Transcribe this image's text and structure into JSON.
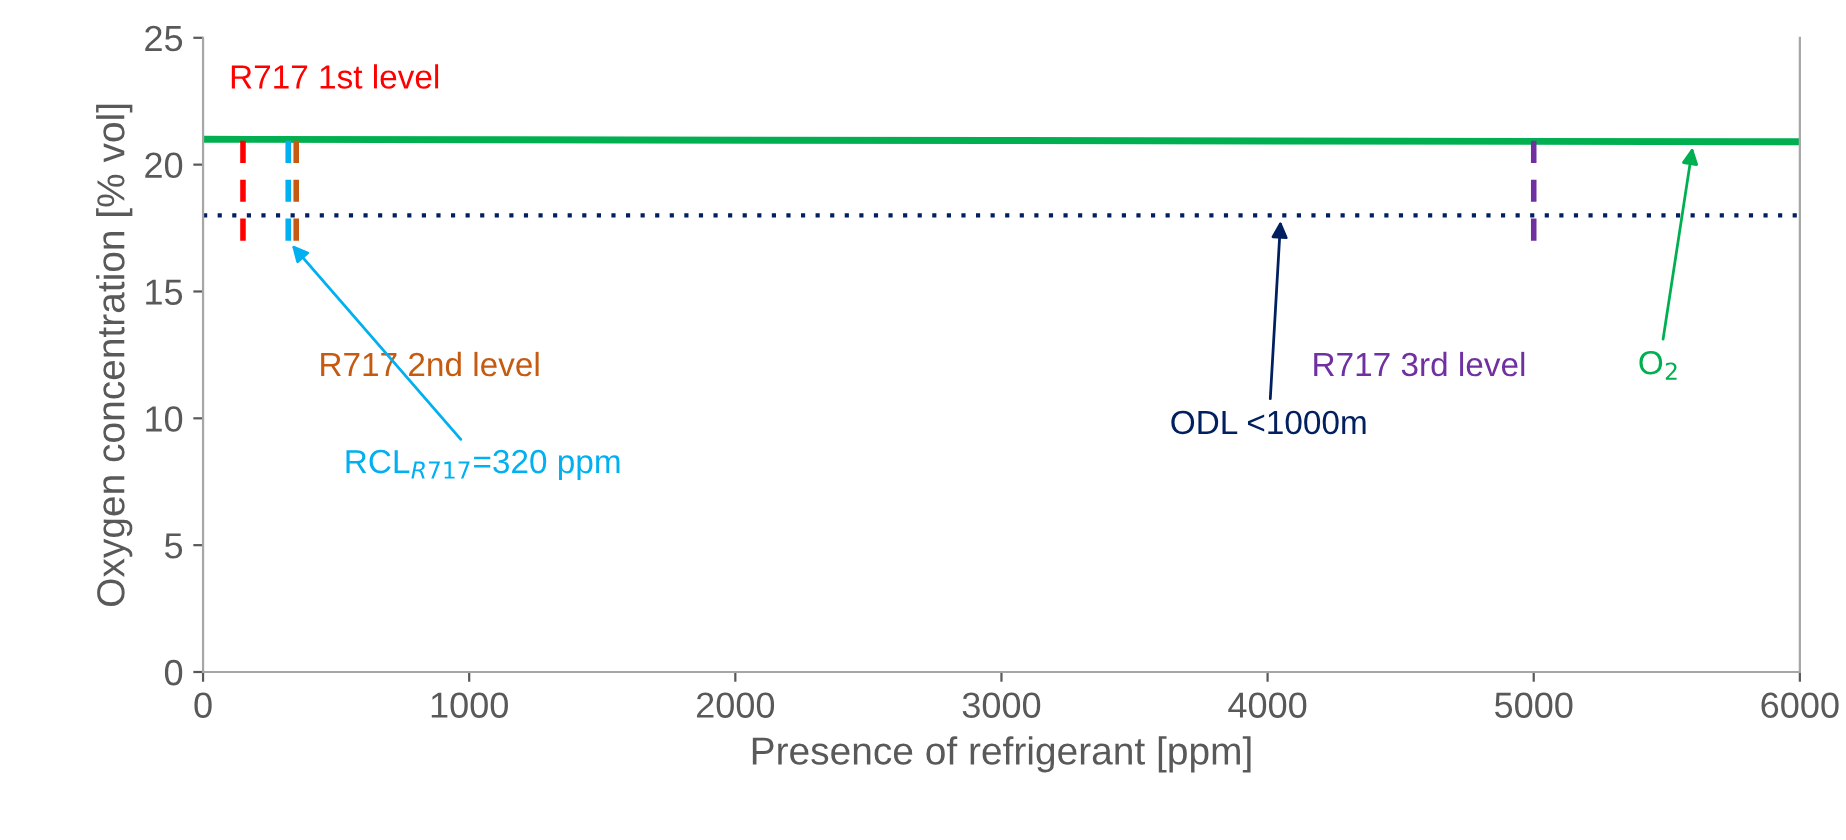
{
  "chart_data": {
    "type": "line",
    "xlabel": "Presence of refrigerant [ppm]",
    "ylabel": "Oxygen concentration [% vol]",
    "xlim": [
      0,
      6000
    ],
    "xticks": [
      0,
      1000,
      2000,
      3000,
      4000,
      5000,
      6000
    ],
    "ylim": [
      0,
      25
    ],
    "yticks": [
      0,
      5,
      10,
      15,
      20,
      25
    ],
    "grid": false,
    "legend": false,
    "series": [
      {
        "color": "#00b050",
        "x": [
          0,
          3000,
          6000
        ],
        "values": [
          21.0,
          20.95,
          20.9
        ],
        "line_style": "solid"
      },
      {
        "name": "R717 1st level",
        "color": "#ff0000",
        "x": [
          150,
          150
        ],
        "values": [
          17.0,
          21.2
        ],
        "line_style": "dashed"
      },
      {
        "color": "#00b0f0",
        "x": [
          320,
          320
        ],
        "values": [
          17.0,
          21.2
        ],
        "line_style": "dashed"
      },
      {
        "name": "R717 2nd level",
        "color": "#c55a11",
        "x": [
          350,
          350
        ],
        "values": [
          17.0,
          21.2
        ],
        "line_style": "dashed"
      },
      {
        "name": "R717 3rd level",
        "color": "#7030a0",
        "x": [
          5000,
          5000
        ],
        "values": [
          17.0,
          21.2
        ],
        "line_style": "dashed"
      }
    ],
    "ref_lines": [
      {
        "axis": "y",
        "value": 18,
        "color": "#002060",
        "line_style": "dotted"
      }
    ],
    "annotations": [
      {
        "text": "RCL$_{R717}$=320 ppm",
        "x": 320,
        "y": 17
      },
      {
        "text": "ODL <1000m",
        "x": 4050,
        "y": 18
      },
      {
        "text": "O$_{2}$",
        "x": 5600,
        "y": 20.9
      }
    ]
  }
}
